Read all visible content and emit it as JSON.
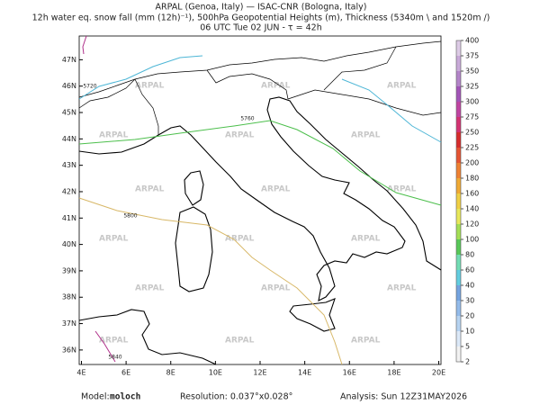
{
  "header": {
    "line1": "ARPAL (Genoa, Italy)  —  ISAC-CNR (Bologna, Italy)",
    "line2": "12h water eq. snow fall (mm (12h)⁻¹), 500hPa Geopotential Heights (m), Thickness (5340m \\ and 1520m /)",
    "line3": "06 UTC Tue 02 JUN  -  τ = 42h"
  },
  "map": {
    "lon_range": [
      3.9,
      20.1
    ],
    "lat_range": [
      35.45,
      47.9
    ],
    "lon_ticks": [
      {
        "value": 4,
        "label": "4E"
      },
      {
        "value": 6,
        "label": "6E"
      },
      {
        "value": 8,
        "label": "8E"
      },
      {
        "value": 10,
        "label": "10E"
      },
      {
        "value": 12,
        "label": "12E"
      },
      {
        "value": 14,
        "label": "14E"
      },
      {
        "value": 16,
        "label": "16E"
      },
      {
        "value": 18,
        "label": "18E"
      },
      {
        "value": 20,
        "label": "20E"
      }
    ],
    "lat_ticks": [
      {
        "value": 36,
        "label": "36N"
      },
      {
        "value": 37,
        "label": "37N"
      },
      {
        "value": 38,
        "label": "38N"
      },
      {
        "value": 39,
        "label": "39N"
      },
      {
        "value": 40,
        "label": "40N"
      },
      {
        "value": 41,
        "label": "41N"
      },
      {
        "value": 42,
        "label": "42N"
      },
      {
        "value": 43,
        "label": "43N"
      },
      {
        "value": 44,
        "label": "44N"
      },
      {
        "value": 45,
        "label": "45N"
      },
      {
        "value": 46,
        "label": "46N"
      },
      {
        "value": 47,
        "label": "47N"
      }
    ],
    "watermark": "ARPAL",
    "contours": [
      {
        "value": 5720,
        "color": "#4db6d6"
      },
      {
        "value": 5760,
        "color": "#4cbf4c"
      },
      {
        "value": 5800,
        "color": "#d8b868"
      },
      {
        "value": 5840,
        "color": "#b0308a"
      }
    ]
  },
  "colorbar": {
    "levels": [
      2,
      5,
      10,
      20,
      30,
      40,
      60,
      80,
      100,
      120,
      140,
      160,
      180,
      200,
      225,
      250,
      275,
      300,
      325,
      350,
      375,
      400
    ],
    "colors": [
      "#f2f2f2",
      "#dce9f8",
      "#b6d3f1",
      "#93bbea",
      "#74a3e0",
      "#62cde0",
      "#72ddb4",
      "#58c858",
      "#a4df55",
      "#e8e85a",
      "#f0d044",
      "#f0aa34",
      "#ef8232",
      "#e65432",
      "#d62c2c",
      "#d43272",
      "#c044a2",
      "#a254b8",
      "#b384c9",
      "#c9aad9",
      "#ddcbe6"
    ]
  },
  "footer": {
    "model_label": "Model:",
    "model": "moloch",
    "resolution": "Resolution: 0.037°x0.028°",
    "analysis": "Analysis: Sun 12Z31MAY2026"
  }
}
